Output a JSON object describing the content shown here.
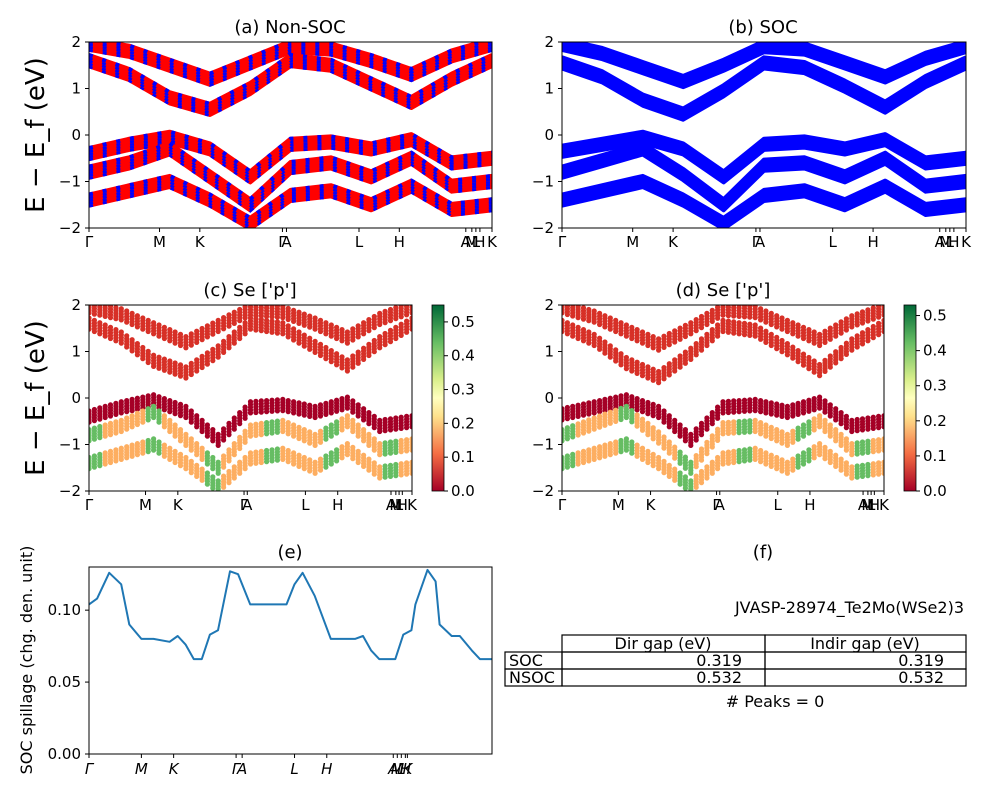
{
  "chart_data": [
    {
      "panel": "a",
      "type": "line",
      "title": "(a) Non-SOC",
      "ylabel": "E − E_f (eV)",
      "ylim": [
        -2,
        2
      ],
      "yticks": [
        -2,
        -1,
        0,
        1,
        2
      ],
      "kpath_labels": [
        "Γ",
        "M",
        "K",
        "Γ",
        "A",
        "L",
        "H",
        "A",
        "M",
        "L",
        "H",
        "K"
      ],
      "series": [
        {
          "color": "#ff0000",
          "values": [
            1.95,
            1.8,
            1.5,
            1.2,
            1.55,
            1.9,
            1.85,
            1.6,
            1.3,
            1.7,
            1.95
          ]
        },
        {
          "color": "#ff0000",
          "values": [
            1.6,
            1.3,
            0.8,
            0.55,
            1.0,
            1.6,
            1.5,
            1.1,
            0.7,
            1.2,
            1.6
          ]
        },
        {
          "color": "#ff0000",
          "values": [
            -0.4,
            -0.2,
            -0.05,
            -0.3,
            -0.9,
            -0.2,
            -0.15,
            -0.3,
            -0.1,
            -0.6,
            -0.5
          ]
        },
        {
          "color": "#ff0000",
          "values": [
            -0.8,
            -0.6,
            -0.3,
            -0.9,
            -1.5,
            -0.7,
            -0.6,
            -0.9,
            -0.5,
            -1.1,
            -1.0
          ]
        },
        {
          "color": "#ff0000",
          "values": [
            -1.4,
            -1.2,
            -1.0,
            -1.4,
            -1.9,
            -1.3,
            -1.2,
            -1.5,
            -1.1,
            -1.6,
            -1.5
          ]
        }
      ],
      "overlay_color": "#0000ff"
    },
    {
      "panel": "b",
      "type": "line",
      "title": "(b) SOC",
      "ylim": [
        -2,
        2
      ],
      "yticks": [
        -2,
        -1,
        0,
        1,
        2
      ],
      "kpath_labels": [
        "Γ",
        "M",
        "K",
        "Γ",
        "A",
        "L",
        "H",
        "A",
        "M",
        "L",
        "H",
        "K"
      ],
      "series": [
        {
          "color": "#0000ff",
          "values": [
            1.95,
            1.75,
            1.45,
            1.15,
            1.5,
            1.9,
            1.85,
            1.55,
            1.25,
            1.65,
            1.9
          ]
        },
        {
          "color": "#0000ff",
          "values": [
            1.55,
            1.25,
            0.75,
            0.45,
            0.95,
            1.55,
            1.45,
            1.05,
            0.6,
            1.15,
            1.55
          ]
        },
        {
          "color": "#0000ff",
          "values": [
            -0.35,
            -0.2,
            -0.05,
            -0.3,
            -0.9,
            -0.2,
            -0.15,
            -0.3,
            -0.1,
            -0.6,
            -0.5
          ]
        },
        {
          "color": "#0000ff",
          "values": [
            -0.8,
            -0.55,
            -0.3,
            -0.85,
            -1.5,
            -0.65,
            -0.6,
            -0.9,
            -0.5,
            -1.1,
            -1.0
          ]
        },
        {
          "color": "#0000ff",
          "values": [
            -1.4,
            -1.2,
            -1.0,
            -1.4,
            -1.9,
            -1.3,
            -1.2,
            -1.5,
            -1.1,
            -1.6,
            -1.5
          ]
        }
      ]
    },
    {
      "panel": "c",
      "type": "scatter",
      "title": "(c)  Se ['p']",
      "ylabel": "E − E_f (eV)",
      "ylim": [
        -2,
        2
      ],
      "yticks": [
        -2,
        -1,
        0,
        1,
        2
      ],
      "colorbar_ticks": [
        0.0,
        0.1,
        0.2,
        0.3,
        0.4,
        0.5
      ],
      "colorbar_range": [
        0,
        0.55
      ],
      "kpath_labels": [
        "Γ",
        "M",
        "K",
        "Γ",
        "A",
        "L",
        "H",
        "A",
        "M",
        "L",
        "H",
        "K"
      ]
    },
    {
      "panel": "d",
      "type": "scatter",
      "title": "(d) Se ['p']",
      "ylim": [
        -2,
        2
      ],
      "yticks": [
        -2,
        -1,
        0,
        1,
        2
      ],
      "colorbar_ticks": [
        0.0,
        0.1,
        0.2,
        0.3,
        0.4,
        0.5
      ],
      "colorbar_range": [
        0,
        0.53
      ],
      "kpath_labels": [
        "Γ",
        "M",
        "K",
        "Γ",
        "A",
        "L",
        "H",
        "A",
        "M",
        "L",
        "H",
        "K"
      ]
    },
    {
      "panel": "e",
      "type": "line",
      "title": "(e)",
      "ylabel": "SOC spillage (chg. den. unit)",
      "ylim": [
        0,
        0.13
      ],
      "yticks": [
        "0.00",
        "0.05",
        "0.10"
      ],
      "xlabels": [
        "Γ",
        "M",
        "K",
        "Γ",
        "A",
        "L",
        "H",
        "A",
        "M",
        "L",
        "H",
        "K"
      ],
      "color": "#1f77b4",
      "x": [
        0,
        0.02,
        0.05,
        0.08,
        0.1,
        0.13,
        0.16,
        0.2,
        0.22,
        0.24,
        0.26,
        0.28,
        0.3,
        0.32,
        0.35,
        0.37,
        0.4,
        0.43,
        0.46,
        0.49,
        0.51,
        0.53,
        0.56,
        0.6,
        0.63,
        0.66,
        0.68,
        0.7,
        0.72,
        0.74,
        0.76,
        0.78,
        0.8,
        0.81,
        0.84,
        0.86,
        0.87,
        0.9,
        0.92,
        0.95,
        0.97,
        1.0
      ],
      "values": [
        0.104,
        0.108,
        0.126,
        0.118,
        0.09,
        0.08,
        0.08,
        0.078,
        0.082,
        0.076,
        0.066,
        0.066,
        0.083,
        0.086,
        0.127,
        0.125,
        0.104,
        0.104,
        0.104,
        0.104,
        0.118,
        0.126,
        0.11,
        0.08,
        0.08,
        0.08,
        0.082,
        0.072,
        0.066,
        0.066,
        0.066,
        0.083,
        0.086,
        0.104,
        0.128,
        0.12,
        0.09,
        0.082,
        0.082,
        0.072,
        0.066,
        0.066
      ]
    }
  ],
  "panel_f": {
    "title": "(f)",
    "material": "JVASP-28974_Te2Mo(WSe2)3",
    "table": {
      "headers": [
        "",
        "Dir gap (eV)",
        "Indir gap (eV)"
      ],
      "rows": [
        [
          "SOC",
          "0.319",
          "0.319"
        ],
        [
          "NSOC",
          "0.532",
          "0.532"
        ]
      ]
    },
    "peaks": "# Peaks = 0"
  }
}
